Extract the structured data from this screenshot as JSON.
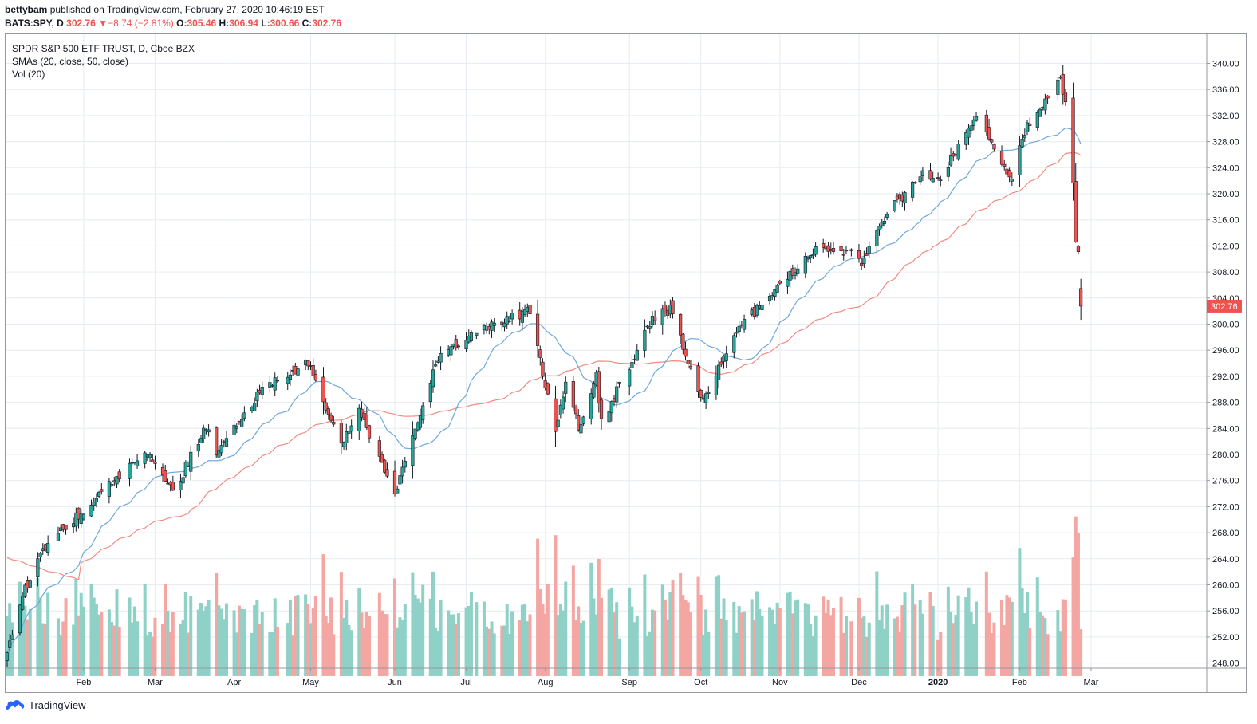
{
  "header": {
    "publisher": "bettybam",
    "published_text": "published on TradingView.com, February 27, 2020 10:46:19 EST",
    "symbol": "BATS:SPY, D",
    "last": "302.76",
    "change_arrow": "▼",
    "change": "−8.74 (−2.81%)",
    "o_label": "O:",
    "o": "305.46",
    "h_label": "H:",
    "h": "306.94",
    "l_label": "L:",
    "l": "300.66",
    "c_label": "C:",
    "c": "302.76"
  },
  "legend": {
    "title": "SPDR S&P 500 ETF TRUST, D, Cboe BZX",
    "sma": "SMAs (20, close, 50, close)",
    "vol": "Vol (20)"
  },
  "footer": {
    "brand": "TradingView",
    "icon": "tradingview-cloud-icon"
  },
  "colors": {
    "up": "#26a69a",
    "down": "#ef5350",
    "sma20": "#6fa8dc",
    "sma50": "#f28b82",
    "vol_up": "#8fd1c7",
    "vol_down": "#f4a6a3",
    "grid": "#e6ecf2",
    "price_tag": "#ef5350"
  },
  "chart_data": {
    "type": "candlestick",
    "symbol": "SPY",
    "ylim": [
      246,
      342
    ],
    "y_ticks": [
      "248.00",
      "252.00",
      "256.00",
      "260.00",
      "264.00",
      "268.00",
      "272.00",
      "276.00",
      "280.00",
      "284.00",
      "288.00",
      "292.00",
      "296.00",
      "300.00",
      "304.00",
      "308.00",
      "312.00",
      "316.00",
      "320.00",
      "324.00",
      "328.00",
      "332.00",
      "336.00",
      "340.00"
    ],
    "x_labels": [
      "Feb",
      "Mar",
      "Apr",
      "May",
      "Jun",
      "Jul",
      "Aug",
      "Sep",
      "Oct",
      "Nov",
      "Dec",
      "2020",
      "Feb",
      "Mar"
    ],
    "last_price_label": "302.76",
    "anchors": [
      [
        "2019-01-02",
        250.2
      ],
      [
        "2019-01-08",
        258.6
      ],
      [
        "2019-01-18",
        266.5
      ],
      [
        "2019-02-05",
        272.8
      ],
      [
        "2019-02-25",
        280.9
      ],
      [
        "2019-03-08",
        274.0
      ],
      [
        "2019-03-21",
        284.5
      ],
      [
        "2019-03-25",
        280.0
      ],
      [
        "2019-04-12",
        290.0
      ],
      [
        "2019-04-30",
        294.0
      ],
      [
        "2019-05-13",
        281.3
      ],
      [
        "2019-05-20",
        286.5
      ],
      [
        "2019-06-03",
        274.0
      ],
      [
        "2019-06-20",
        295.0
      ],
      [
        "2019-07-03",
        298.5
      ],
      [
        "2019-07-15",
        300.7
      ],
      [
        "2019-07-26",
        302.0
      ],
      [
        "2019-08-05",
        283.5
      ],
      [
        "2019-08-09",
        291.5
      ],
      [
        "2019-08-14",
        284.0
      ],
      [
        "2019-08-21",
        292.0
      ],
      [
        "2019-08-23",
        284.8
      ],
      [
        "2019-09-12",
        301.0
      ],
      [
        "2019-09-19",
        302.3
      ],
      [
        "2019-10-02",
        288.0
      ],
      [
        "2019-10-15",
        299.0
      ],
      [
        "2019-11-15",
        311.8
      ],
      [
        "2019-12-02",
        310.5
      ],
      [
        "2019-12-03",
        309.0
      ],
      [
        "2019-12-13",
        317.3
      ],
      [
        "2019-12-27",
        322.8
      ],
      [
        "2020-01-03",
        322.4
      ],
      [
        "2020-01-17",
        331.9
      ],
      [
        "2020-01-31",
        321.7
      ],
      [
        "2020-02-04",
        329.0
      ],
      [
        "2020-02-19",
        338.3
      ],
      [
        "2020-02-21",
        333.5
      ],
      [
        "2020-02-24",
        322.4
      ],
      [
        "2020-02-25",
        312.7
      ],
      [
        "2020-02-26",
        311.5
      ],
      [
        "2020-02-27",
        302.76
      ]
    ],
    "last_bar": {
      "date": "2020-02-27",
      "open": 305.46,
      "high": 306.94,
      "low": 300.66,
      "close": 302.76
    },
    "series": [
      {
        "name": "SMA 20",
        "kind": "sma",
        "period": 20
      },
      {
        "name": "SMA 50",
        "kind": "sma",
        "period": 50
      },
      {
        "name": "Vol",
        "kind": "volume"
      }
    ]
  }
}
